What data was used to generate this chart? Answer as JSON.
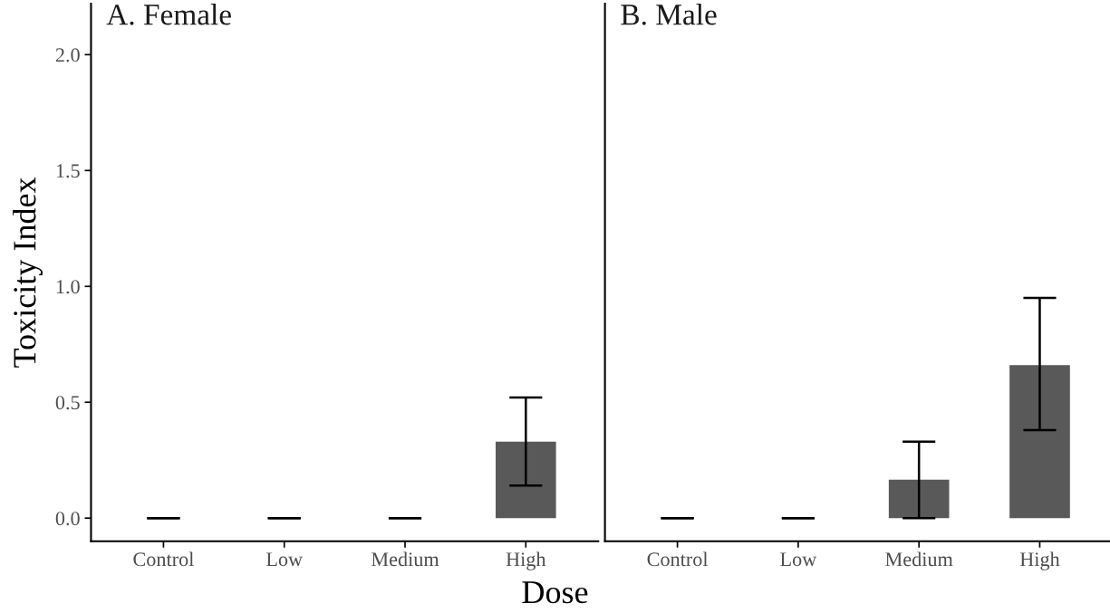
{
  "chart_data": [
    {
      "type": "bar",
      "title": "A. Female",
      "xlabel": "Dose",
      "ylabel": "Toxicity Index",
      "categories": [
        "Control",
        "Low",
        "Medium",
        "High"
      ],
      "series": [
        {
          "color": "#595959",
          "values": [
            0,
            0,
            0,
            0.33
          ],
          "errors": [
            [
              0,
              0
            ],
            [
              0,
              0
            ],
            [
              0,
              0
            ],
            [
              0.14,
              0.52
            ]
          ]
        }
      ],
      "ylim": [
        -0.1,
        2.22
      ],
      "yticks": [
        {
          "value": 0,
          "label": "0.0"
        },
        {
          "value": 0.5,
          "label": "0.5"
        },
        {
          "value": 1,
          "label": "1.0"
        },
        {
          "value": 1.5,
          "label": "1.5"
        },
        {
          "value": 2,
          "label": "2.0"
        }
      ],
      "grid": false,
      "legend": false
    },
    {
      "type": "bar",
      "title": "B. Male",
      "categories": [
        "Control",
        "Low",
        "Medium",
        "High"
      ],
      "series": [
        {
          "color": "#595959",
          "values": [
            0,
            0,
            0.166,
            0.66
          ],
          "errors": [
            [
              0,
              0
            ],
            [
              0,
              0
            ],
            [
              0,
              0.33
            ],
            [
              0.38,
              0.95
            ]
          ]
        }
      ],
      "ylim": [
        -0.1,
        2.22
      ],
      "tick_labels": "x",
      "grid": false,
      "legend": false
    }
  ]
}
